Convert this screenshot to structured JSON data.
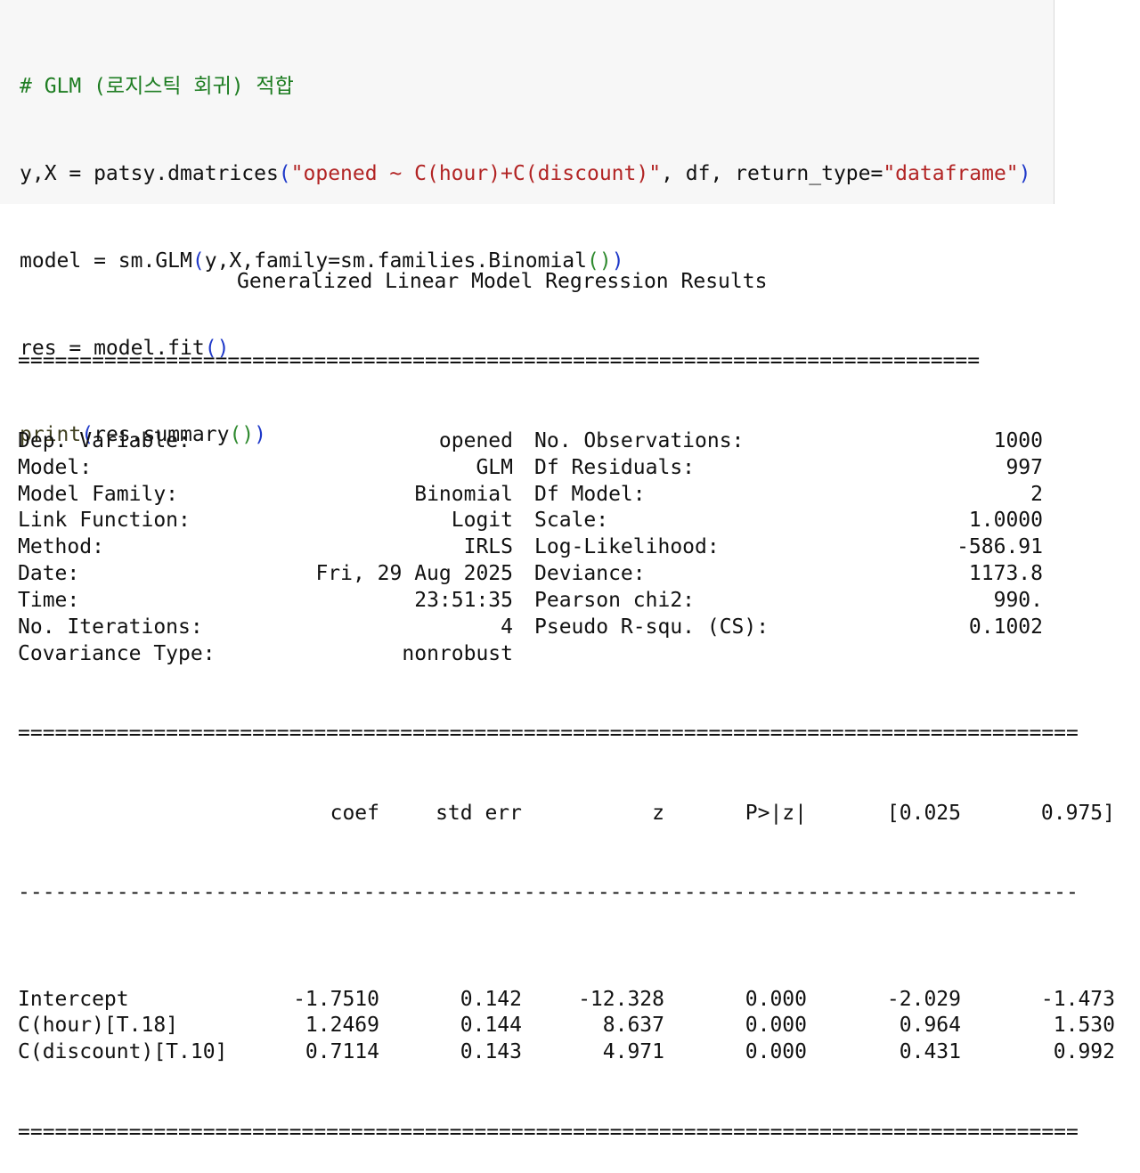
{
  "code": {
    "comment": "# GLM (로지스틱 회귀) 적합",
    "line2": {
      "prefix": "y,X = patsy.dmatrices",
      "open": "(",
      "formula": "\"opened ~ C(hour)+C(discount)\"",
      "middle": ", df, return_type=",
      "rtype": "\"dataframe\"",
      "close": ")"
    },
    "line3": {
      "prefix": "model = sm.GLM",
      "open": "(",
      "args": "y,X,family=sm.families.Binomial",
      "inner": "()",
      "close": ")"
    },
    "line4": {
      "prefix": "res = model.fit",
      "parens": "()"
    },
    "line5": {
      "func": "print",
      "open": "(",
      "arg": "res.summary",
      "inner": "()",
      "close": ")"
    }
  },
  "summary": {
    "title": "Generalized Linear Model Regression Results",
    "rule_short": "==============================================================================",
    "rule_long": "======================================================================================",
    "rule_dash": "--------------------------------------------------------------------------------------",
    "info_rows": [
      {
        "label": "Dep. Variable:",
        "value": "opened",
        "label2": "No. Observations:",
        "value2": "1000"
      },
      {
        "label": "Model:",
        "value": "GLM",
        "label2": "Df Residuals:",
        "value2": "997"
      },
      {
        "label": "Model Family:",
        "value": "Binomial",
        "label2": "Df Model:",
        "value2": "2"
      },
      {
        "label": "Link Function:",
        "value": "Logit",
        "label2": "Scale:",
        "value2": "1.0000"
      },
      {
        "label": "Method:",
        "value": "IRLS",
        "label2": "Log-Likelihood:",
        "value2": "-586.91"
      },
      {
        "label": "Date:",
        "value": "Fri, 29 Aug 2025",
        "label2": "Deviance:",
        "value2": "1173.8"
      },
      {
        "label": "Time:",
        "value": "23:51:35",
        "label2": "Pearson chi2:",
        "value2": "990."
      },
      {
        "label": "No. Iterations:",
        "value": "4",
        "label2": "Pseudo R-squ. (CS):",
        "value2": "0.1002"
      },
      {
        "label": "Covariance Type:",
        "value": "nonrobust",
        "label2": "",
        "value2": ""
      }
    ],
    "coef_headers": [
      "coef",
      "std err",
      "z",
      "P>|z|",
      "[0.025",
      "0.975]"
    ],
    "coef_rows": [
      {
        "name": "Intercept",
        "values": [
          "-1.7510",
          "0.142",
          "-12.328",
          "0.000",
          "-2.029",
          "-1.473"
        ]
      },
      {
        "name": "C(hour)[T.18]",
        "values": [
          "1.2469",
          "0.144",
          "8.637",
          "0.000",
          "0.964",
          "1.530"
        ]
      },
      {
        "name": "C(discount)[T.10]",
        "values": [
          "0.7114",
          "0.143",
          "4.971",
          "0.000",
          "0.431",
          "0.992"
        ]
      }
    ]
  }
}
